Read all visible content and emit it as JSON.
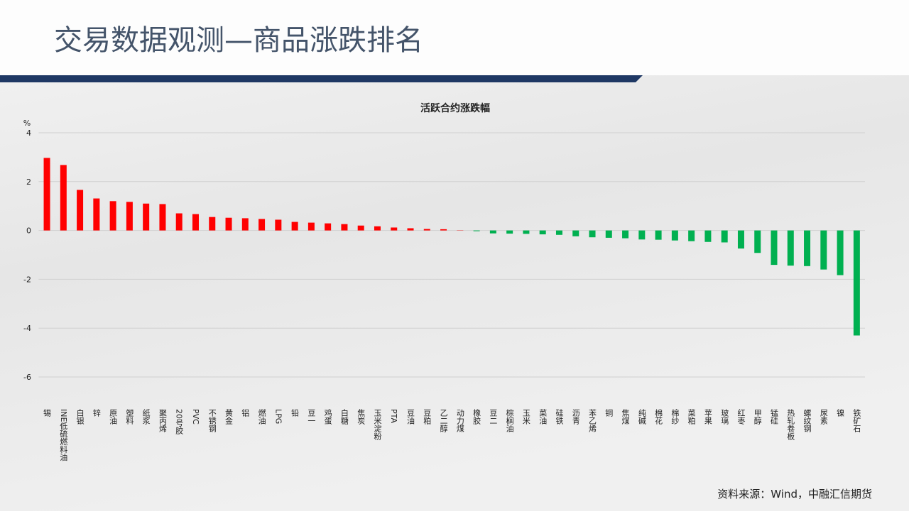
{
  "header": {
    "title": "交易数据观测—商品涨跌排名"
  },
  "chart_data": {
    "type": "bar",
    "title": "活跃合约涨跌幅",
    "y_unit": "%",
    "categories": [
      "锡",
      "INE低硫燃料油",
      "白银",
      "锌",
      "原油",
      "塑料",
      "纸浆",
      "聚丙烯",
      "20号胶",
      "PVC",
      "不锈钢",
      "黄金",
      "铝",
      "燃油",
      "LPG",
      "铅",
      "豆一",
      "鸡蛋",
      "白糖",
      "焦炭",
      "玉米淀粉",
      "PTA",
      "豆油",
      "豆粕",
      "乙二醇",
      "动力煤",
      "橡胶",
      "豆二",
      "棕榈油",
      "玉米",
      "菜油",
      "硅铁",
      "沥青",
      "苯乙烯",
      "铜",
      "焦煤",
      "纯碱",
      "棉花",
      "棉纱",
      "菜粕",
      "苹果",
      "玻璃",
      "红枣",
      "甲醇",
      "锰硅",
      "热轧卷板",
      "螺纹钢",
      "尿素",
      "镍",
      "铁矿石"
    ],
    "values": [
      2.97,
      2.68,
      1.66,
      1.31,
      1.2,
      1.17,
      1.1,
      1.08,
      0.7,
      0.67,
      0.55,
      0.52,
      0.5,
      0.47,
      0.44,
      0.35,
      0.32,
      0.29,
      0.26,
      0.2,
      0.17,
      0.12,
      0.09,
      0.06,
      0.05,
      0.01,
      -0.03,
      -0.12,
      -0.13,
      -0.14,
      -0.16,
      -0.18,
      -0.24,
      -0.28,
      -0.3,
      -0.32,
      -0.37,
      -0.38,
      -0.41,
      -0.44,
      -0.47,
      -0.49,
      -0.74,
      -0.92,
      -1.41,
      -1.44,
      -1.46,
      -1.6,
      -1.83,
      -4.3
    ],
    "positive_color": "#ff0000",
    "negative_color": "#00b050",
    "ylim": [
      -6,
      4
    ],
    "yticks": [
      -6,
      -4,
      -2,
      0,
      2,
      4
    ],
    "grid": true
  },
  "footer": {
    "source": "资料来源：Wind，中融汇信期货"
  }
}
